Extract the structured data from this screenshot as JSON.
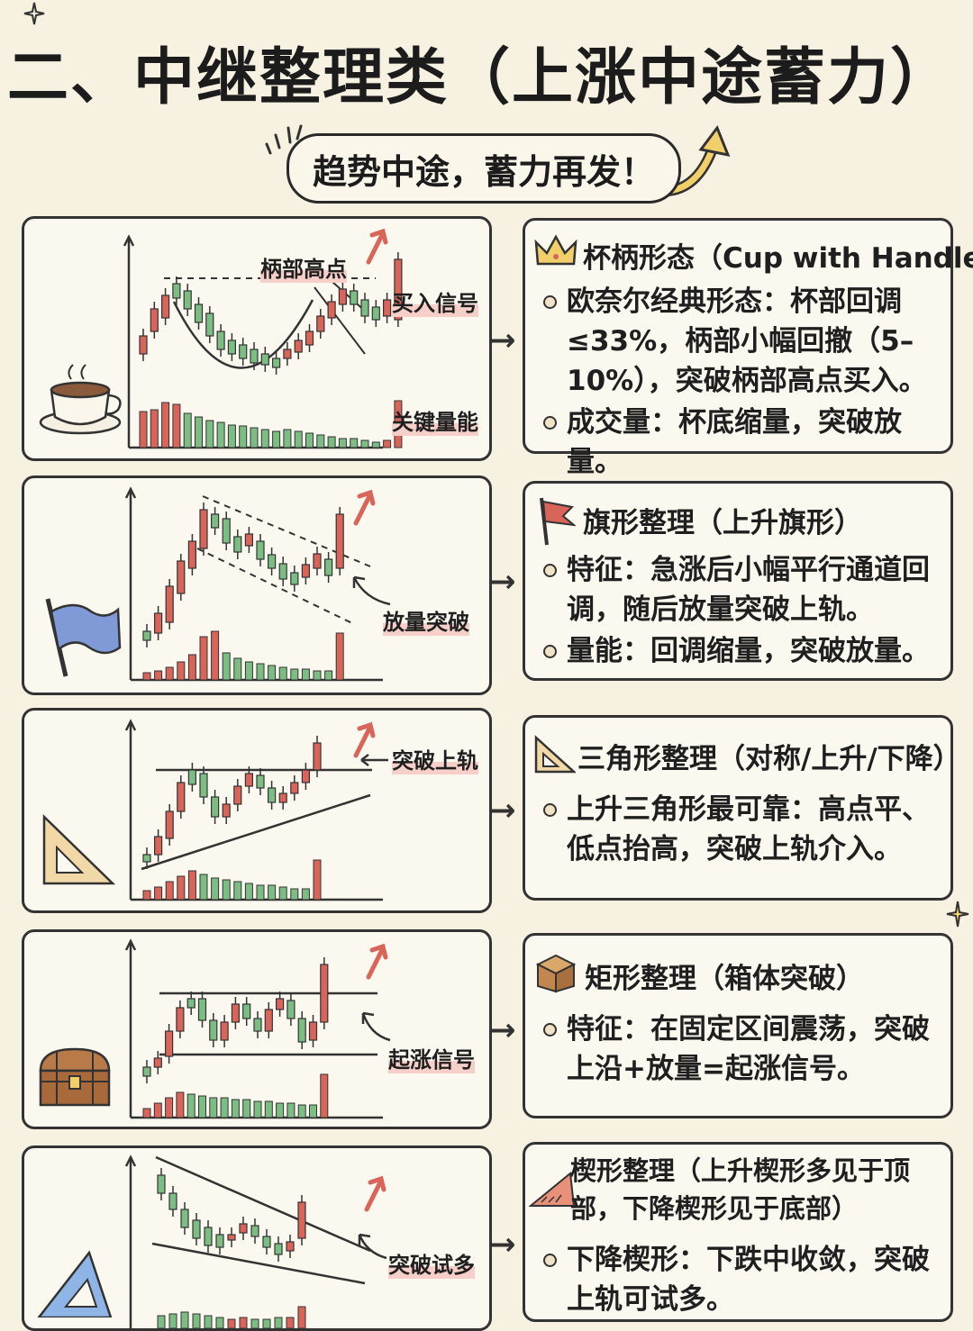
{
  "title": "二、中继整理类（上涨中途蓄力）",
  "subtitle": "趋势中途，蓄力再发！",
  "colors": {
    "up": "#d9645a",
    "down": "#7cbd84",
    "ink": "#2a2a2a",
    "bg": "#f7f1e2"
  },
  "patterns": [
    {
      "title": "杯柄形态（Cup with Handle）",
      "icon": "crown-icon",
      "chart_icon": "coffee-cup-icon",
      "bullets": [
        "欧奈尔经典形态：杯部回调≤33%，柄部小幅回撤（5–10%），突破柄部高点买入。",
        "成交量：杯底缩量，突破放量。"
      ],
      "annotations": [
        "柄部高点",
        "买入信号",
        "关键量能"
      ]
    },
    {
      "title": "旗形整理（上升旗形）",
      "icon": "red-flag-icon",
      "chart_icon": "blue-flag-icon",
      "bullets": [
        "特征：急涨后小幅平行通道回调，随后放量突破上轨。",
        "量能：回调缩量，突破放量。"
      ],
      "annotations": [
        "放量突破"
      ]
    },
    {
      "title": "三角形整理（对称/上升/下降）",
      "icon": "triangle-ruler-icon",
      "chart_icon": "set-square-icon",
      "bullets": [
        "上升三角形最可靠：高点平、低点抬高，突破上轨介入。"
      ],
      "annotations": [
        "突破上轨"
      ]
    },
    {
      "title": "矩形整理（箱体突破）",
      "icon": "box-icon",
      "chart_icon": "treasure-chest-icon",
      "bullets": [
        "特征：在固定区间震荡，突破上沿+放量=起涨信号。"
      ],
      "annotations": [
        "起涨信号"
      ]
    },
    {
      "title": "楔形整理（上升楔形多见于顶部，下降楔形见于底部）",
      "icon": "wedge-ruler-icon",
      "chart_icon": "blue-set-square-icon",
      "bullets": [
        "下降楔形：下跌中收敛，突破上轨可试多。"
      ],
      "annotations": [
        "突破试多"
      ]
    }
  ]
}
